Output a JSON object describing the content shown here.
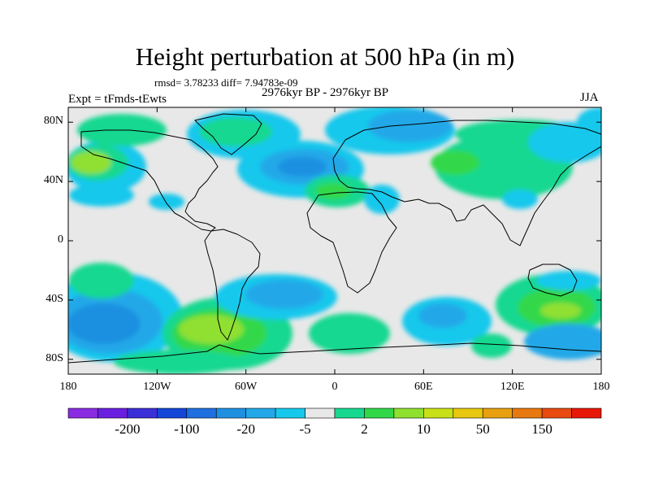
{
  "figure": {
    "title": "Height perturbation at 500 hPa (in m)",
    "stats": "rmsd= 3.78233 diff= 7.94783e-09",
    "subtitle": "2976kyr BP - 2976kyr BP",
    "experiment": "Expt = tFmds-tEwts",
    "season": "JJA"
  },
  "map": {
    "projection": "cylindrical equidistant",
    "lon_range": [
      -180,
      180
    ],
    "lat_range": [
      -90,
      90
    ],
    "lat_ticks": [
      {
        "value": 80,
        "label": "80N"
      },
      {
        "value": 40,
        "label": "40N"
      },
      {
        "value": 0,
        "label": "0"
      },
      {
        "value": -40,
        "label": "40S"
      },
      {
        "value": -80,
        "label": "80S"
      }
    ],
    "lon_ticks": [
      {
        "value": -180,
        "label": "180"
      },
      {
        "value": -120,
        "label": "120W"
      },
      {
        "value": -60,
        "label": "60W"
      },
      {
        "value": 0,
        "label": "0"
      },
      {
        "value": 60,
        "label": "60E"
      },
      {
        "value": 120,
        "label": "120E"
      },
      {
        "value": 180,
        "label": "180"
      }
    ],
    "features": [
      {
        "name": "north-america-outline",
        "type": "coastline"
      },
      {
        "name": "south-america-outline",
        "type": "coastline"
      },
      {
        "name": "greenland-outline",
        "type": "coastline"
      },
      {
        "name": "eurasia-outline",
        "type": "coastline"
      },
      {
        "name": "africa-outline",
        "type": "coastline"
      },
      {
        "name": "australia-outline",
        "type": "coastline"
      },
      {
        "name": "antarctica-outline",
        "type": "coastline"
      }
    ]
  },
  "colorbar": {
    "colors": [
      "#8a2be2",
      "#6a1fe0",
      "#3b2fd8",
      "#1446d8",
      "#1f6fe0",
      "#1f90e0",
      "#22a8e8",
      "#16c8ec",
      "#e8e8e8",
      "#18d890",
      "#30d848",
      "#90e030",
      "#c8e018",
      "#e8c810",
      "#e8a010",
      "#e87810",
      "#e84a10",
      "#e81808"
    ],
    "labels": [
      {
        "text": "-200",
        "after_box": 2
      },
      {
        "text": "-100",
        "after_box": 4
      },
      {
        "text": "-20",
        "after_box": 6
      },
      {
        "text": "-5",
        "after_box": 8
      },
      {
        "text": "2",
        "after_box": 10
      },
      {
        "text": "10",
        "after_box": 12
      },
      {
        "text": "50",
        "after_box": 14
      },
      {
        "text": "150",
        "after_box": 16
      }
    ]
  }
}
